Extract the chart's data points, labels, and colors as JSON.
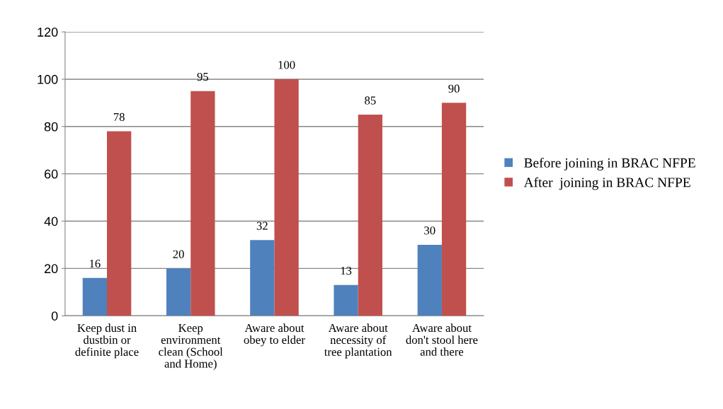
{
  "chart_data": {
    "type": "bar",
    "categories": [
      "Keep dust in\ndustbin or\ndefinite place",
      "Keep\nenvironment\nclean (School\nand Home)",
      "Aware about\nobey to elder",
      "Aware about\nnecessity of\ntree plantation",
      "Aware about\ndon't stool here\nand there"
    ],
    "series": [
      {
        "name": "Before joining in BRAC NFPE",
        "color": "#4f81bd",
        "values": [
          16,
          20,
          32,
          13,
          30
        ]
      },
      {
        "name": "After  joining in BRAC NFPE",
        "color": "#c0504d",
        "values": [
          78,
          95,
          100,
          85,
          90
        ]
      }
    ],
    "ylim": [
      0,
      120
    ],
    "yticks": [
      0,
      20,
      40,
      60,
      80,
      100,
      120
    ],
    "grid": "y",
    "legend": "right",
    "data_labels": true
  }
}
